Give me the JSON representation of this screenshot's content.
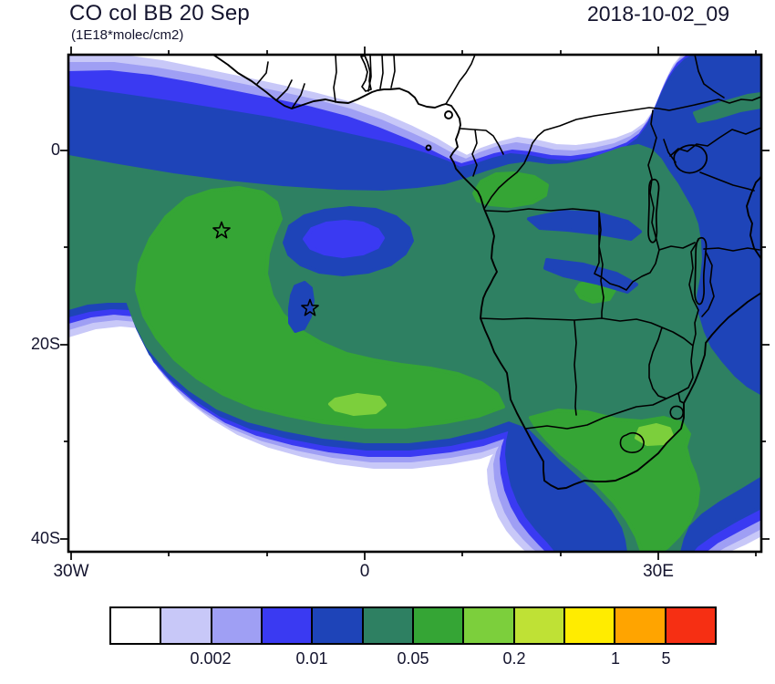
{
  "header": {
    "title": "CO col BB 20 Sep",
    "units": "(1E18*molec/cm2)",
    "datetime": "2018-10-02_09"
  },
  "axes": {
    "y_ticks": [
      "0",
      "20S",
      "40S"
    ],
    "x_ticks": [
      "30W",
      "0",
      "30E"
    ]
  },
  "colorbar": {
    "labels": [
      "0.002",
      "0.01",
      "0.05",
      "0.2",
      "1",
      "5"
    ],
    "label_boundaries": [
      2,
      4,
      6,
      8,
      10,
      11
    ],
    "colors": [
      "#ffffff",
      "#c8c8f8",
      "#9f9ff4",
      "#3a3af2",
      "#1e44b8",
      "#2e8062",
      "#35a535",
      "#7ccf3c",
      "#bfe135",
      "#ffec00",
      "#ffa400",
      "#f62f13"
    ]
  },
  "chart_data": {
    "type": "heatmap",
    "title": "CO col BB 20 Sep",
    "units": "1E18*molec/cm2",
    "time_label": "2018-10-02_09",
    "lon_range": [
      -30,
      40
    ],
    "lat_range": [
      -41,
      10
    ],
    "x_tick_values_deg_east": [
      -30,
      0,
      30
    ],
    "y_tick_values_deg_north": [
      0,
      -20,
      -40
    ],
    "contour_levels": [
      0.001,
      0.002,
      0.005,
      0.01,
      0.02,
      0.05,
      0.1,
      0.2,
      0.5,
      1,
      5
    ],
    "labeled_levels": [
      0.002,
      0.01,
      0.05,
      0.2,
      1,
      5
    ],
    "palette": [
      "#ffffff",
      "#c8c8f8",
      "#9f9ff4",
      "#3a3af2",
      "#1e44b8",
      "#2e8062",
      "#35a535",
      "#7ccf3c",
      "#bfe135",
      "#ffec00",
      "#ffa400",
      "#f62f13"
    ],
    "star_markers": [
      {
        "lon": -14.6,
        "lat": -8.3
      },
      {
        "lon": -5.6,
        "lat": -16.2
      }
    ],
    "field_summary": "Biomass-burning CO column: broad 0.01-0.05 plume over the South Atlantic and southern Africa; 0.05-0.1 ridge arcs from ~8S offshore Angola southward and eastward across ~25-35S over South Africa; values below 0.002 north of the Gulf of Guinea coast and in the far SW and SE corners."
  }
}
